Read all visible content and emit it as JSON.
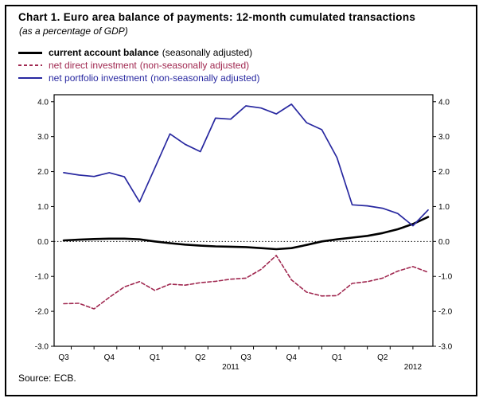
{
  "source_note": "Source: ECB.",
  "chart_data": {
    "type": "line",
    "title": "Chart 1. Euro area balance of payments: 12-month cumulated transactions",
    "subtitle": "(as a percentage of GDP)",
    "xlabel": "",
    "ylabel": "",
    "grid": false,
    "legend_position": "top-left",
    "ylim": [
      -3.0,
      4.2
    ],
    "y_ticks": [
      4.0,
      3.0,
      2.0,
      1.0,
      0.0,
      -1.0,
      -2.0,
      -3.0
    ],
    "y_axis_sides": "both",
    "zero_line_dotted": true,
    "x_months_span": 25,
    "x_quarter_ticks": [
      {
        "label": "Q3",
        "month": 0
      },
      {
        "label": "Q4",
        "month": 3
      },
      {
        "label": "Q1",
        "month": 6
      },
      {
        "label": "Q2",
        "month": 9
      },
      {
        "label": "Q3",
        "month": 12
      },
      {
        "label": "Q4",
        "month": 15
      },
      {
        "label": "Q1",
        "month": 18
      },
      {
        "label": "Q2",
        "month": 21
      }
    ],
    "x_year_ticks": [
      {
        "label": "2011",
        "month": 11
      },
      {
        "label": "2012",
        "month": 23
      }
    ],
    "series": [
      {
        "name": "current account balance",
        "qualifier": "(seasonally adjusted)",
        "color": "#000000",
        "style": "solid",
        "width": 2.6,
        "values": [
          0.03,
          0.05,
          0.07,
          0.08,
          0.08,
          0.06,
          0.0,
          -0.05,
          -0.09,
          -0.12,
          -0.14,
          -0.15,
          -0.16,
          -0.19,
          -0.22,
          -0.19,
          -0.1,
          0.0,
          0.06,
          0.11,
          0.16,
          0.24,
          0.35,
          0.5,
          0.7
        ]
      },
      {
        "name": "net direct investment",
        "qualifier": "(non-seasonally adjusted)",
        "color": "#a02850",
        "style": "dashed",
        "width": 1.6,
        "values": [
          -1.78,
          -1.77,
          -1.93,
          -1.6,
          -1.3,
          -1.15,
          -1.4,
          -1.22,
          -1.25,
          -1.18,
          -1.14,
          -1.08,
          -1.05,
          -0.8,
          -0.4,
          -1.1,
          -1.45,
          -1.56,
          -1.55,
          -1.2,
          -1.15,
          -1.05,
          -0.85,
          -0.72,
          -0.88
        ]
      },
      {
        "name": "net portfolio investment",
        "qualifier": "(non-seasonally adjusted)",
        "color": "#2828a0",
        "style": "solid",
        "width": 1.7,
        "values": [
          1.97,
          1.9,
          1.86,
          1.97,
          1.85,
          1.13,
          2.1,
          3.08,
          2.78,
          2.57,
          3.53,
          3.5,
          3.88,
          3.82,
          3.65,
          3.93,
          3.4,
          3.2,
          2.4,
          1.05,
          1.02,
          0.95,
          0.8,
          0.45,
          0.9
        ]
      }
    ]
  }
}
